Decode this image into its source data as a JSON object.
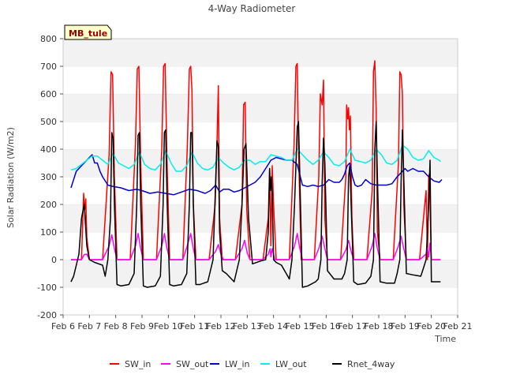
{
  "chart_data": {
    "type": "line",
    "title": "4-Way Radiometer",
    "xlabel": "Time",
    "ylabel": "Solar Radiation (W/m2)",
    "xlim": [
      6,
      21
    ],
    "ylim": [
      -200,
      800
    ],
    "y_ticks": [
      -200,
      -100,
      0,
      100,
      200,
      300,
      400,
      500,
      600,
      700,
      800
    ],
    "x_ticks": [
      {
        "value": 6,
        "label": "Feb 6"
      },
      {
        "value": 7,
        "label": "Feb 7"
      },
      {
        "value": 8,
        "label": "Feb 8"
      },
      {
        "value": 9,
        "label": "Feb 9"
      },
      {
        "value": 10,
        "label": "Feb 10"
      },
      {
        "value": 11,
        "label": "Feb 11"
      },
      {
        "value": 12,
        "label": "Feb 12"
      },
      {
        "value": 13,
        "label": "Feb 13"
      },
      {
        "value": 14,
        "label": "Feb 14"
      },
      {
        "value": 15,
        "label": "Feb 15"
      },
      {
        "value": 16,
        "label": "Feb 16"
      },
      {
        "value": 17,
        "label": "Feb 17"
      },
      {
        "value": 18,
        "label": "Feb 18"
      },
      {
        "value": 19,
        "label": "Feb 19"
      },
      {
        "value": 20,
        "label": "Feb 20"
      },
      {
        "value": 21,
        "label": "Feb 21"
      }
    ],
    "annotation": "MB_tule",
    "legend_position": "bottom",
    "grid": "horizontal bands",
    "series": [
      {
        "name": "SW_in",
        "color": "#ff0000",
        "x": [
          6.3,
          6.7,
          6.78,
          6.82,
          6.86,
          6.9,
          7.0,
          7.5,
          7.75,
          7.82,
          7.88,
          7.95,
          8.05,
          8.25,
          8.55,
          8.75,
          8.82,
          8.88,
          8.95,
          9.05,
          9.25,
          9.55,
          9.75,
          9.82,
          9.88,
          9.95,
          10.05,
          10.25,
          10.55,
          10.72,
          10.8,
          10.85,
          10.9,
          10.95,
          11.05,
          11.25,
          11.55,
          11.78,
          11.85,
          11.9,
          11.95,
          12.05,
          12.25,
          12.55,
          12.8,
          12.86,
          12.92,
          12.98,
          13.1,
          13.3,
          13.6,
          13.8,
          13.85,
          13.9,
          13.95,
          14.0,
          14.1,
          14.3,
          14.6,
          14.78,
          14.85,
          14.9,
          14.95,
          15.05,
          15.25,
          15.55,
          15.72,
          15.78,
          15.85,
          15.9,
          15.95,
          16.05,
          16.25,
          16.55,
          16.75,
          16.78,
          16.82,
          16.85,
          16.88,
          16.92,
          16.98,
          17.05,
          17.25,
          17.55,
          17.75,
          17.8,
          17.85,
          17.9,
          17.95,
          18.05,
          18.25,
          18.55,
          18.75,
          18.8,
          18.85,
          18.9,
          18.95,
          19.05,
          19.25,
          19.55,
          19.8,
          19.85,
          19.9,
          19.92,
          19.95,
          20.0,
          20.1,
          20.35
        ],
        "y": [
          0,
          0,
          240,
          180,
          220,
          80,
          0,
          0,
          380,
          680,
          670,
          300,
          0,
          0,
          0,
          420,
          690,
          700,
          350,
          0,
          0,
          0,
          400,
          700,
          710,
          350,
          0,
          0,
          0,
          400,
          690,
          700,
          610,
          200,
          0,
          0,
          0,
          200,
          420,
          630,
          150,
          0,
          0,
          0,
          200,
          560,
          570,
          180,
          0,
          0,
          0,
          150,
          330,
          50,
          340,
          200,
          0,
          0,
          0,
          420,
          700,
          710,
          400,
          0,
          0,
          0,
          300,
          600,
          560,
          650,
          150,
          0,
          0,
          0,
          300,
          560,
          510,
          550,
          470,
          520,
          150,
          0,
          0,
          0,
          250,
          680,
          720,
          550,
          100,
          0,
          0,
          0,
          350,
          680,
          670,
          600,
          200,
          0,
          0,
          0,
          250,
          0,
          300,
          310,
          200,
          0,
          0,
          0
        ]
      },
      {
        "name": "SW_out",
        "color": "#ff00ff",
        "x": [
          6.3,
          6.7,
          6.8,
          6.9,
          7.0,
          7.5,
          7.75,
          7.85,
          7.95,
          8.05,
          8.55,
          8.75,
          8.85,
          8.95,
          9.05,
          9.55,
          9.75,
          9.85,
          9.95,
          10.05,
          10.55,
          10.72,
          10.85,
          10.95,
          11.05,
          11.55,
          11.8,
          11.9,
          12.0,
          12.1,
          12.55,
          12.8,
          12.9,
          13.0,
          13.1,
          13.6,
          13.8,
          13.87,
          13.9,
          13.95,
          14.05,
          14.6,
          14.8,
          14.9,
          15.0,
          15.1,
          15.55,
          15.72,
          15.85,
          15.95,
          16.05,
          16.55,
          16.75,
          16.85,
          16.95,
          17.05,
          17.55,
          17.75,
          17.85,
          17.95,
          18.05,
          18.55,
          18.75,
          18.85,
          18.95,
          19.05,
          19.55,
          19.8,
          19.85,
          19.9,
          19.95,
          20.0,
          20.35
        ],
        "y": [
          0,
          0,
          18,
          20,
          0,
          0,
          50,
          90,
          40,
          0,
          0,
          50,
          95,
          40,
          0,
          0,
          50,
          95,
          40,
          0,
          0,
          50,
          95,
          40,
          0,
          0,
          30,
          55,
          20,
          0,
          0,
          40,
          70,
          25,
          0,
          0,
          20,
          40,
          10,
          40,
          0,
          0,
          50,
          95,
          40,
          0,
          0,
          40,
          85,
          40,
          0,
          0,
          35,
          70,
          30,
          0,
          0,
          50,
          95,
          40,
          0,
          0,
          50,
          85,
          40,
          0,
          0,
          20,
          40,
          10,
          60,
          0,
          0
        ]
      },
      {
        "name": "LW_in",
        "color": "#0000cc",
        "x": [
          6.3,
          6.4,
          6.5,
          6.6,
          6.7,
          6.8,
          6.9,
          7.0,
          7.1,
          7.2,
          7.3,
          7.4,
          7.5,
          7.7,
          7.9,
          8.2,
          8.5,
          8.8,
          9.0,
          9.3,
          9.6,
          9.9,
          10.2,
          10.5,
          10.8,
          11.1,
          11.4,
          11.6,
          11.8,
          11.95,
          12.1,
          12.3,
          12.5,
          12.7,
          12.9,
          13.1,
          13.3,
          13.5,
          13.7,
          13.9,
          14.1,
          14.3,
          14.5,
          14.7,
          14.9,
          15.1,
          15.3,
          15.5,
          15.7,
          15.9,
          16.1,
          16.3,
          16.5,
          16.6,
          16.7,
          16.8,
          16.9,
          17.0,
          17.1,
          17.2,
          17.35,
          17.5,
          17.7,
          17.9,
          18.1,
          18.3,
          18.5,
          18.7,
          18.9,
          19.0,
          19.1,
          19.3,
          19.5,
          19.7,
          19.9,
          20.1,
          20.3,
          20.4
        ],
        "y": [
          260,
          290,
          320,
          330,
          340,
          350,
          360,
          370,
          380,
          350,
          350,
          320,
          300,
          270,
          265,
          260,
          250,
          255,
          250,
          240,
          245,
          240,
          235,
          245,
          255,
          250,
          240,
          250,
          270,
          245,
          255,
          255,
          245,
          250,
          260,
          270,
          280,
          300,
          330,
          360,
          370,
          365,
          360,
          360,
          345,
          270,
          265,
          270,
          265,
          270,
          290,
          280,
          280,
          290,
          310,
          340,
          350,
          300,
          270,
          265,
          270,
          290,
          275,
          270,
          270,
          270,
          275,
          300,
          320,
          330,
          320,
          330,
          320,
          320,
          300,
          285,
          280,
          290
        ]
      },
      {
        "name": "LW_out",
        "color": "#00eeee",
        "x": [
          6.3,
          6.5,
          6.7,
          6.9,
          7.1,
          7.3,
          7.5,
          7.7,
          7.9,
          8.1,
          8.3,
          8.5,
          8.7,
          8.9,
          9.1,
          9.3,
          9.5,
          9.7,
          9.9,
          10.1,
          10.3,
          10.5,
          10.7,
          10.9,
          11.1,
          11.3,
          11.5,
          11.7,
          11.9,
          12.1,
          12.3,
          12.5,
          12.7,
          12.9,
          13.1,
          13.3,
          13.5,
          13.7,
          13.9,
          14.1,
          14.3,
          14.5,
          14.7,
          14.9,
          15.1,
          15.3,
          15.5,
          15.7,
          15.9,
          16.1,
          16.3,
          16.5,
          16.7,
          16.9,
          17.1,
          17.3,
          17.5,
          17.7,
          17.9,
          18.1,
          18.3,
          18.5,
          18.7,
          18.9,
          19.1,
          19.3,
          19.5,
          19.7,
          19.9,
          20.1,
          20.3,
          20.35
        ],
        "y": [
          325,
          330,
          345,
          360,
          375,
          375,
          360,
          345,
          385,
          350,
          340,
          330,
          345,
          390,
          345,
          330,
          325,
          345,
          395,
          350,
          320,
          320,
          340,
          390,
          350,
          330,
          325,
          335,
          370,
          350,
          335,
          325,
          335,
          360,
          360,
          345,
          355,
          355,
          380,
          375,
          370,
          360,
          360,
          400,
          380,
          360,
          345,
          360,
          390,
          370,
          345,
          340,
          355,
          400,
          360,
          355,
          350,
          360,
          400,
          380,
          350,
          345,
          360,
          415,
          400,
          370,
          360,
          365,
          395,
          370,
          360,
          355
        ]
      },
      {
        "name": "Rnet_4way",
        "color": "#000000",
        "x": [
          6.3,
          6.4,
          6.5,
          6.6,
          6.7,
          6.8,
          6.85,
          6.9,
          7.0,
          7.2,
          7.5,
          7.6,
          7.7,
          7.8,
          7.85,
          7.9,
          7.95,
          8.05,
          8.2,
          8.5,
          8.7,
          8.8,
          8.85,
          8.9,
          8.95,
          9.05,
          9.2,
          9.5,
          9.7,
          9.8,
          9.85,
          9.9,
          9.95,
          10.05,
          10.2,
          10.5,
          10.7,
          10.8,
          10.85,
          10.9,
          10.95,
          11.05,
          11.2,
          11.5,
          11.7,
          11.85,
          11.9,
          11.95,
          12.05,
          12.2,
          12.5,
          12.6,
          12.7,
          12.8,
          12.88,
          12.95,
          13.05,
          13.2,
          13.5,
          13.7,
          13.8,
          13.85,
          13.88,
          13.92,
          13.96,
          14.0,
          14.1,
          14.3,
          14.6,
          14.7,
          14.8,
          14.9,
          14.95,
          15.0,
          15.1,
          15.3,
          15.6,
          15.7,
          15.8,
          15.85,
          15.9,
          15.95,
          16.05,
          16.3,
          16.6,
          16.7,
          16.8,
          16.85,
          16.9,
          16.95,
          17.05,
          17.2,
          17.5,
          17.7,
          17.8,
          17.85,
          17.9,
          17.95,
          18.05,
          18.3,
          18.6,
          18.7,
          18.8,
          18.85,
          18.9,
          18.95,
          19.05,
          19.3,
          19.6,
          19.7,
          19.8,
          19.85,
          19.9,
          19.95,
          20.0,
          20.1,
          20.35
        ],
        "y": [
          -80,
          -60,
          -20,
          20,
          150,
          200,
          130,
          50,
          0,
          -10,
          -20,
          -60,
          0,
          150,
          460,
          440,
          200,
          -90,
          -95,
          -90,
          -50,
          200,
          450,
          460,
          200,
          -95,
          -100,
          -95,
          -60,
          200,
          460,
          470,
          220,
          -90,
          -95,
          -90,
          -50,
          200,
          460,
          460,
          200,
          -90,
          -90,
          -80,
          0,
          430,
          410,
          100,
          -40,
          -50,
          -80,
          -40,
          0,
          200,
          400,
          420,
          150,
          -15,
          -5,
          0,
          100,
          330,
          250,
          300,
          200,
          0,
          -10,
          -20,
          -70,
          0,
          200,
          480,
          500,
          300,
          -100,
          -95,
          -80,
          -70,
          0,
          280,
          440,
          350,
          -40,
          -70,
          -70,
          -50,
          0,
          300,
          340,
          200,
          -80,
          -90,
          -85,
          -60,
          0,
          400,
          500,
          300,
          -80,
          -85,
          -85,
          -50,
          0,
          280,
          470,
          300,
          -50,
          -55,
          -60,
          -30,
          0,
          100,
          200,
          360,
          -80,
          -80,
          -80
        ]
      }
    ]
  }
}
